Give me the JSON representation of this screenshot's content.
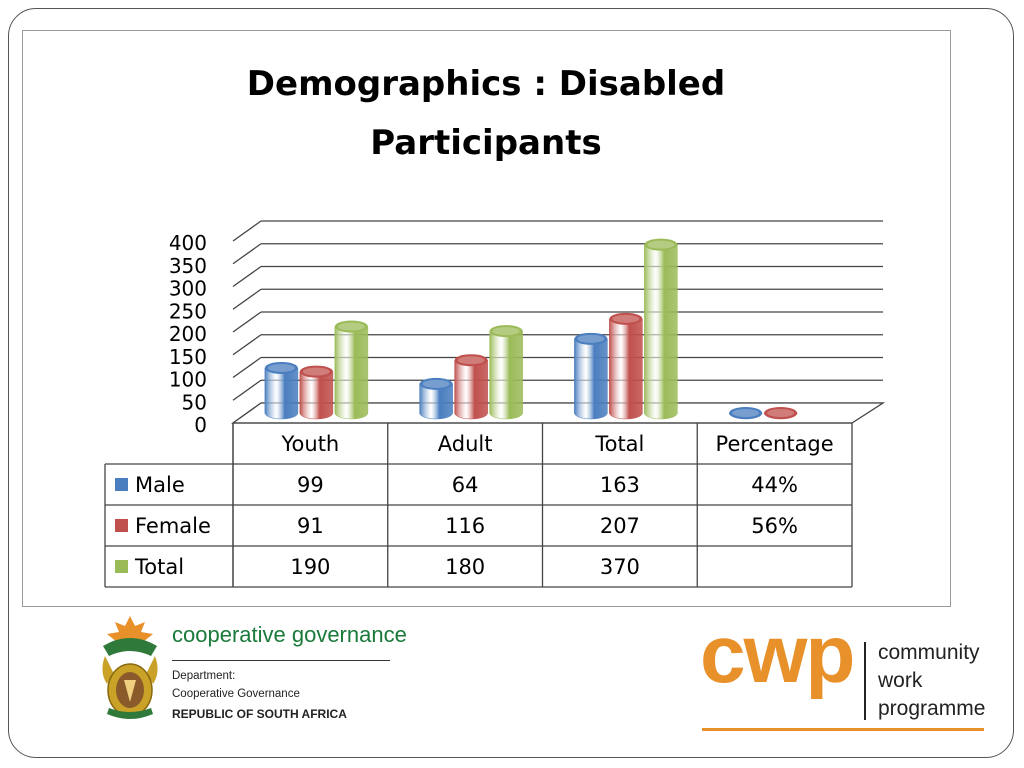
{
  "chart_data": {
    "type": "bar",
    "title": "Demographics : Disabled Participants",
    "title_lines": [
      "Demographics : Disabled",
      "Participants"
    ],
    "categories": [
      "Youth",
      "Adult",
      "Total",
      "Percentage"
    ],
    "ylim": [
      0,
      400
    ],
    "yticks": [
      "0",
      "50",
      "100",
      "150",
      "200",
      "250",
      "300",
      "350",
      "400"
    ],
    "grid": true,
    "legend_placement": "data-table",
    "series": [
      {
        "name": "Male",
        "color": "#4a7ebf",
        "values": [
          99,
          64,
          163,
          0.44
        ],
        "cells": [
          "99",
          "64",
          "163",
          "44%"
        ]
      },
      {
        "name": "Female",
        "color": "#c0504d",
        "values": [
          91,
          116,
          207,
          0.56
        ],
        "cells": [
          "91",
          "116",
          "207",
          "56%"
        ]
      },
      {
        "name": "Total",
        "color": "#9bbb59",
        "values": [
          190,
          180,
          370,
          null
        ],
        "cells": [
          "190",
          "180",
          "370",
          ""
        ]
      }
    ]
  },
  "footer": {
    "gov_name": "cooperative governance",
    "gov_dept": "Department:",
    "gov_sub": "Cooperative Governance",
    "gov_country": "REPUBLIC OF SOUTH AFRICA",
    "cwp_word": "cwp",
    "cwp_line1": "community",
    "cwp_line2": "work",
    "cwp_line3": "programme",
    "cwp_color": "#e8912a",
    "gov_color": "#1a7a3a"
  }
}
